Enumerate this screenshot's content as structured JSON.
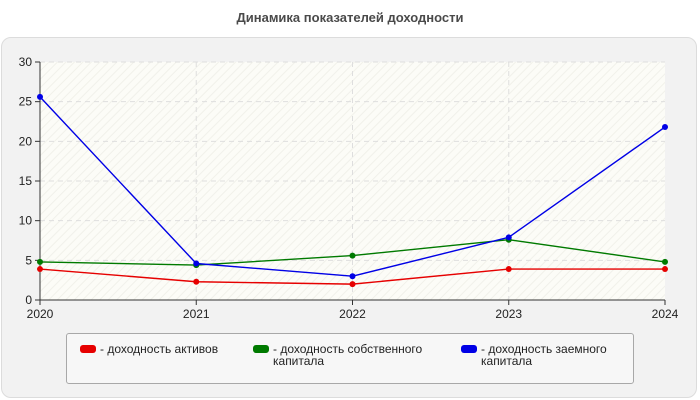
{
  "chart_data": {
    "type": "line",
    "title": "Динамика показателей доходности",
    "xlabel": "",
    "ylabel": "",
    "categories": [
      "2020",
      "2021",
      "2022",
      "2023",
      "2024"
    ],
    "ylim": [
      0,
      30
    ],
    "yticks": [
      "0",
      "5",
      "10",
      "15",
      "20",
      "25",
      "30"
    ],
    "grid": true,
    "legend_position": "bottom",
    "series": [
      {
        "name": "- доходность активов",
        "color": "#e60000",
        "values": [
          3.9,
          2.3,
          2.0,
          3.9,
          3.9
        ]
      },
      {
        "name": "- доходность собственного капитала",
        "color": "#007a00",
        "values": [
          4.8,
          4.4,
          5.6,
          7.6,
          4.8
        ]
      },
      {
        "name": "- доходность заемного капитала",
        "color": "#0000e6",
        "values": [
          25.6,
          4.6,
          3.0,
          7.9,
          21.8
        ]
      }
    ]
  }
}
